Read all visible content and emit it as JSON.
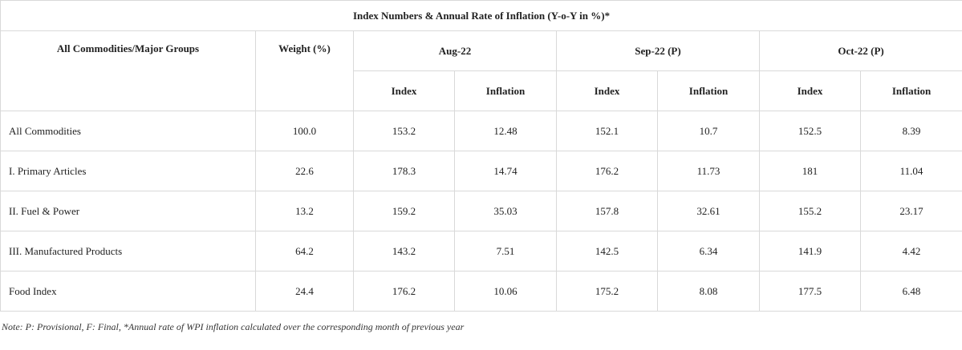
{
  "table": {
    "title": "Index Numbers & Annual Rate of Inflation (Y-o-Y in %)*",
    "groups_header": "All Commodities/Major Groups",
    "weight_header": "Weight (%)",
    "periods": [
      "Aug-22",
      "Sep-22 (P)",
      "Oct-22 (P)"
    ],
    "sub_headers": {
      "index": "Index",
      "inflation": "Inflation"
    },
    "rows": [
      {
        "group": "All Commodities",
        "weight": "100.0",
        "aug_index": "153.2",
        "aug_inflation": "12.48",
        "sep_index": "152.1",
        "sep_inflation": "10.7",
        "oct_index": "152.5",
        "oct_inflation": "8.39"
      },
      {
        "group": "I. Primary Articles",
        "weight": "22.6",
        "aug_index": "178.3",
        "aug_inflation": "14.74",
        "sep_index": "176.2",
        "sep_inflation": "11.73",
        "oct_index": "181",
        "oct_inflation": "11.04"
      },
      {
        "group": "II. Fuel & Power",
        "weight": "13.2",
        "aug_index": "159.2",
        "aug_inflation": "35.03",
        "sep_index": "157.8",
        "sep_inflation": "32.61",
        "oct_index": "155.2",
        "oct_inflation": "23.17"
      },
      {
        "group": "III. Manufactured Products",
        "weight": "64.2",
        "aug_index": "143.2",
        "aug_inflation": "7.51",
        "sep_index": "142.5",
        "sep_inflation": "6.34",
        "oct_index": "141.9",
        "oct_inflation": "4.42"
      },
      {
        "group": "Food Index",
        "weight": "24.4",
        "aug_index": "176.2",
        "aug_inflation": "10.06",
        "sep_index": "175.2",
        "sep_inflation": "8.08",
        "oct_index": "177.5",
        "oct_inflation": "6.48"
      }
    ]
  },
  "note": "Note: P: Provisional, F: Final, *Annual rate of WPI inflation calculated over the corresponding month of previous year"
}
